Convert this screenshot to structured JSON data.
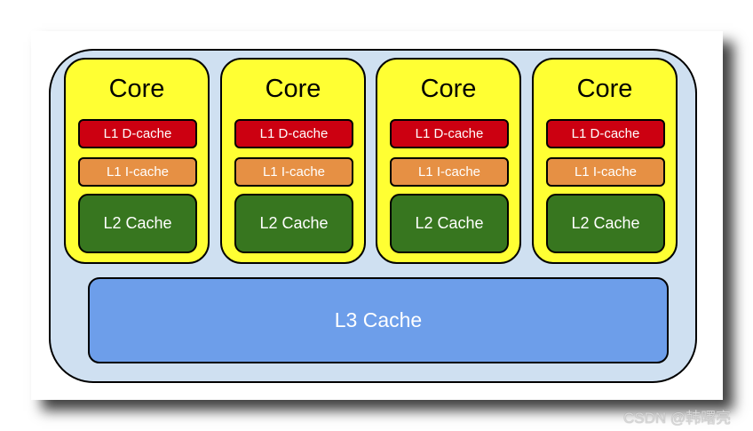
{
  "cores": [
    {
      "title": "Core",
      "l1d": "L1 D-cache",
      "l1i": "L1 I-cache",
      "l2": "L2 Cache"
    },
    {
      "title": "Core",
      "l1d": "L1 D-cache",
      "l1i": "L1 I-cache",
      "l2": "L2 Cache"
    },
    {
      "title": "Core",
      "l1d": "L1 D-cache",
      "l1i": "L1 I-cache",
      "l2": "L2 Cache"
    },
    {
      "title": "Core",
      "l1d": "L1 D-cache",
      "l1i": "L1 I-cache",
      "l2": "L2 Cache"
    }
  ],
  "l3": "L3 Cache",
  "watermark": "CSDN @韩曙亮",
  "colors": {
    "core": "#ffff33",
    "l1d": "#cc0011",
    "l1i": "#e69044",
    "l2": "#37761f",
    "l3": "#6d9eea",
    "package": "#cfe0f1"
  }
}
